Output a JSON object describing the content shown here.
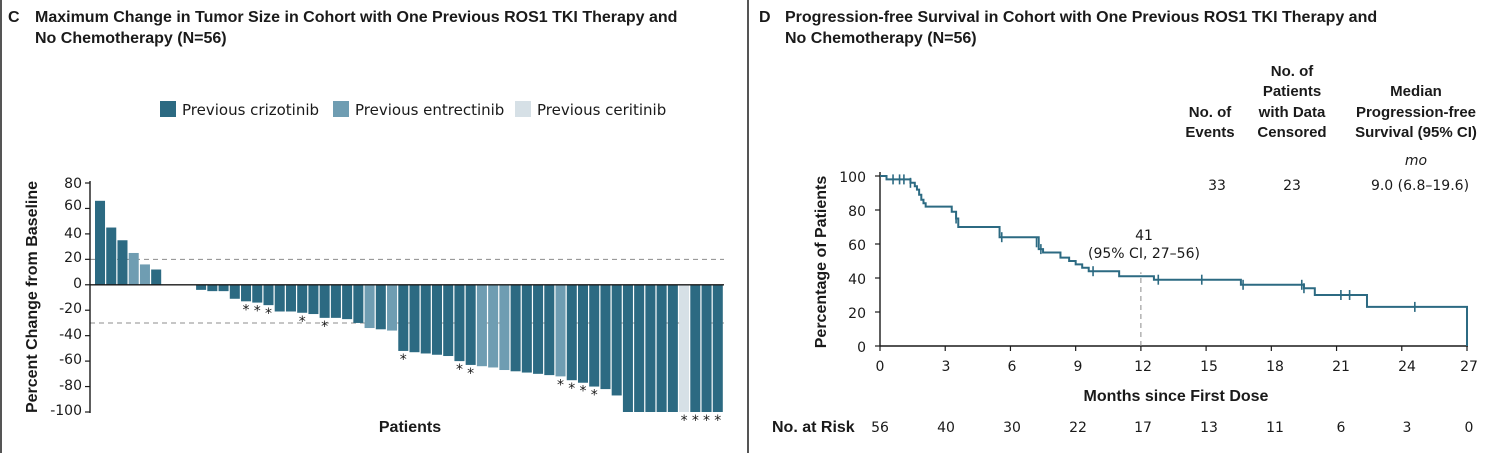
{
  "panel_c": {
    "letter": "C",
    "title_line1": "Maximum Change in Tumor Size in Cohort with One Previous ROS1 TKI Therapy and",
    "title_line2": "No Chemotherapy (N=56)",
    "legend": [
      {
        "label": "Previous crizotinib",
        "color": "#2c6a82"
      },
      {
        "label": "Previous entrectinib",
        "color": "#6f9db2"
      },
      {
        "label": "Previous ceritinib",
        "color": "#d6e0e6"
      }
    ],
    "ylabel": "Percent Change from Baseline",
    "xlabel": "Patients",
    "y_ticks": [
      "80",
      "60",
      "40",
      "20",
      "0",
      "-20",
      "-40",
      "-60",
      "-80",
      "-100"
    ]
  },
  "panel_d": {
    "letter": "D",
    "title_line1": "Progression-free Survival in Cohort with One Previous ROS1 TKI Therapy and",
    "title_line2": "No Chemotherapy (N=56)",
    "ylabel": "Percentage of Patients",
    "xlabel": "Months since First Dose",
    "x_ticks": [
      "0",
      "3",
      "6",
      "9",
      "12",
      "15",
      "18",
      "21",
      "24",
      "27"
    ],
    "y_ticks": [
      "100",
      "80",
      "60",
      "40",
      "20",
      "0"
    ],
    "stats_headers": {
      "events_l1": "No. of",
      "events_l2": "Events",
      "censored_l1": "No. of",
      "censored_l2": "Patients",
      "censored_l3": "with Data",
      "censored_l4": "Censored",
      "median_l1": "Median",
      "median_l2": "Progression-free",
      "median_l3": "Survival (95% CI)",
      "median_unit": "mo"
    },
    "stats_values": {
      "events": "33",
      "censored": "23",
      "median": "9.0 (6.8–19.6)"
    },
    "annotation_l1": "41",
    "annotation_l2": "(95% CI, 27–56)",
    "risk_label": "No. at Risk",
    "risk_values": [
      "56",
      "40",
      "30",
      "22",
      "17",
      "13",
      "11",
      "6",
      "3",
      "0"
    ]
  },
  "chart_data": [
    {
      "type": "bar",
      "title": "Maximum Change in Tumor Size in Cohort with One Previous ROS1 TKI Therapy and No Chemotherapy (N=56)",
      "xlabel": "Patients",
      "ylabel": "Percent Change from Baseline",
      "ylim": [
        -100,
        80
      ],
      "reference_lines": [
        20,
        -30
      ],
      "legend_position": "top",
      "series": [
        {
          "name": "Previous crizotinib",
          "color": "#2c6a82"
        },
        {
          "name": "Previous entrectinib",
          "color": "#6f9db2"
        },
        {
          "name": "Previous ceritinib",
          "color": "#d6e0e6"
        }
      ],
      "bars": [
        {
          "value": 66,
          "group": "Previous crizotinib"
        },
        {
          "value": 45,
          "group": "Previous crizotinib"
        },
        {
          "value": 35,
          "group": "Previous crizotinib"
        },
        {
          "value": 25,
          "group": "Previous entrectinib"
        },
        {
          "value": 16,
          "group": "Previous entrectinib"
        },
        {
          "value": 12,
          "group": "Previous crizotinib"
        },
        {
          "value": 0,
          "group": "Previous crizotinib"
        },
        {
          "value": 0,
          "group": "Previous crizotinib"
        },
        {
          "value": 0,
          "group": "Previous crizotinib"
        },
        {
          "value": -4,
          "group": "Previous crizotinib"
        },
        {
          "value": -5,
          "group": "Previous crizotinib"
        },
        {
          "value": -5,
          "group": "Previous crizotinib"
        },
        {
          "value": -11,
          "group": "Previous crizotinib"
        },
        {
          "value": -13,
          "group": "Previous crizotinib",
          "asterisk": true
        },
        {
          "value": -14,
          "group": "Previous crizotinib",
          "asterisk": true
        },
        {
          "value": -16,
          "group": "Previous crizotinib",
          "asterisk": true
        },
        {
          "value": -21,
          "group": "Previous crizotinib"
        },
        {
          "value": -21,
          "group": "Previous crizotinib"
        },
        {
          "value": -22,
          "group": "Previous crizotinib",
          "asterisk": true
        },
        {
          "value": -23,
          "group": "Previous crizotinib"
        },
        {
          "value": -26,
          "group": "Previous crizotinib",
          "asterisk": true
        },
        {
          "value": -26,
          "group": "Previous crizotinib"
        },
        {
          "value": -27,
          "group": "Previous crizotinib"
        },
        {
          "value": -30,
          "group": "Previous crizotinib"
        },
        {
          "value": -34,
          "group": "Previous entrectinib"
        },
        {
          "value": -35,
          "group": "Previous crizotinib"
        },
        {
          "value": -36,
          "group": "Previous entrectinib"
        },
        {
          "value": -52,
          "group": "Previous crizotinib",
          "asterisk": true
        },
        {
          "value": -53,
          "group": "Previous crizotinib"
        },
        {
          "value": -54,
          "group": "Previous crizotinib"
        },
        {
          "value": -55,
          "group": "Previous crizotinib"
        },
        {
          "value": -56,
          "group": "Previous crizotinib"
        },
        {
          "value": -60,
          "group": "Previous crizotinib",
          "asterisk": true
        },
        {
          "value": -63,
          "group": "Previous crizotinib",
          "asterisk": true
        },
        {
          "value": -64,
          "group": "Previous entrectinib"
        },
        {
          "value": -65,
          "group": "Previous entrectinib"
        },
        {
          "value": -67,
          "group": "Previous entrectinib"
        },
        {
          "value": -68,
          "group": "Previous crizotinib"
        },
        {
          "value": -69,
          "group": "Previous crizotinib"
        },
        {
          "value": -70,
          "group": "Previous crizotinib"
        },
        {
          "value": -71,
          "group": "Previous crizotinib"
        },
        {
          "value": -72,
          "group": "Previous entrectinib",
          "asterisk": true
        },
        {
          "value": -75,
          "group": "Previous crizotinib",
          "asterisk": true
        },
        {
          "value": -77,
          "group": "Previous crizotinib",
          "asterisk": true
        },
        {
          "value": -80,
          "group": "Previous crizotinib",
          "asterisk": true
        },
        {
          "value": -82,
          "group": "Previous crizotinib"
        },
        {
          "value": -87,
          "group": "Previous crizotinib"
        },
        {
          "value": -100,
          "group": "Previous crizotinib"
        },
        {
          "value": -100,
          "group": "Previous crizotinib"
        },
        {
          "value": -100,
          "group": "Previous crizotinib"
        },
        {
          "value": -100,
          "group": "Previous crizotinib"
        },
        {
          "value": -100,
          "group": "Previous crizotinib"
        },
        {
          "value": -100,
          "group": "Previous ceritinib",
          "asterisk": true
        },
        {
          "value": -100,
          "group": "Previous crizotinib",
          "asterisk": true
        },
        {
          "value": -100,
          "group": "Previous crizotinib",
          "asterisk": true
        },
        {
          "value": -100,
          "group": "Previous crizotinib",
          "asterisk": true
        }
      ]
    },
    {
      "type": "line",
      "title": "Progression-free Survival in Cohort with One Previous ROS1 TKI Therapy and No Chemotherapy (N=56)",
      "xlabel": "Months since First Dose",
      "ylabel": "Percentage of Patients",
      "xlim": [
        0,
        27
      ],
      "ylim": [
        0,
        100
      ],
      "step": true,
      "color": "#2c6a82",
      "series": [
        {
          "x": [
            0,
            0.3,
            1.4,
            1.6,
            1.7,
            1.8,
            1.9,
            2.0,
            2.1,
            3.3,
            3.5,
            3.6,
            5.5,
            7.3,
            7.5,
            8.3,
            8.7,
            9.0,
            9.3,
            9.6,
            11.0,
            12.6,
            16.6,
            19.5,
            20.0,
            22.4,
            26.9,
            27.0
          ],
          "y": [
            100,
            98,
            96,
            94,
            92,
            89,
            86,
            84,
            82,
            79,
            75,
            70,
            64,
            57,
            55,
            52,
            50,
            48,
            46,
            44,
            41,
            39,
            36,
            34,
            30,
            23,
            23,
            0
          ]
        }
      ],
      "censor_marks": {
        "x": [
          0.6,
          0.9,
          1.1,
          1.4,
          3.5,
          5.6,
          7.2,
          7.4,
          9.8,
          12.8,
          14.8,
          16.7,
          19.4,
          19.5,
          21.2,
          21.6,
          24.6
        ],
        "y": [
          98,
          98,
          98,
          96,
          75,
          64,
          61,
          57,
          44,
          39,
          39,
          36,
          36,
          34,
          30,
          30,
          23
        ]
      },
      "reference": {
        "x": 12,
        "y": 41
      },
      "number_at_risk": {
        "x": [
          0,
          3,
          6,
          9,
          12,
          15,
          18,
          21,
          24,
          27
        ],
        "n": [
          56,
          40,
          30,
          22,
          17,
          13,
          11,
          6,
          3,
          0
        ]
      }
    }
  ]
}
